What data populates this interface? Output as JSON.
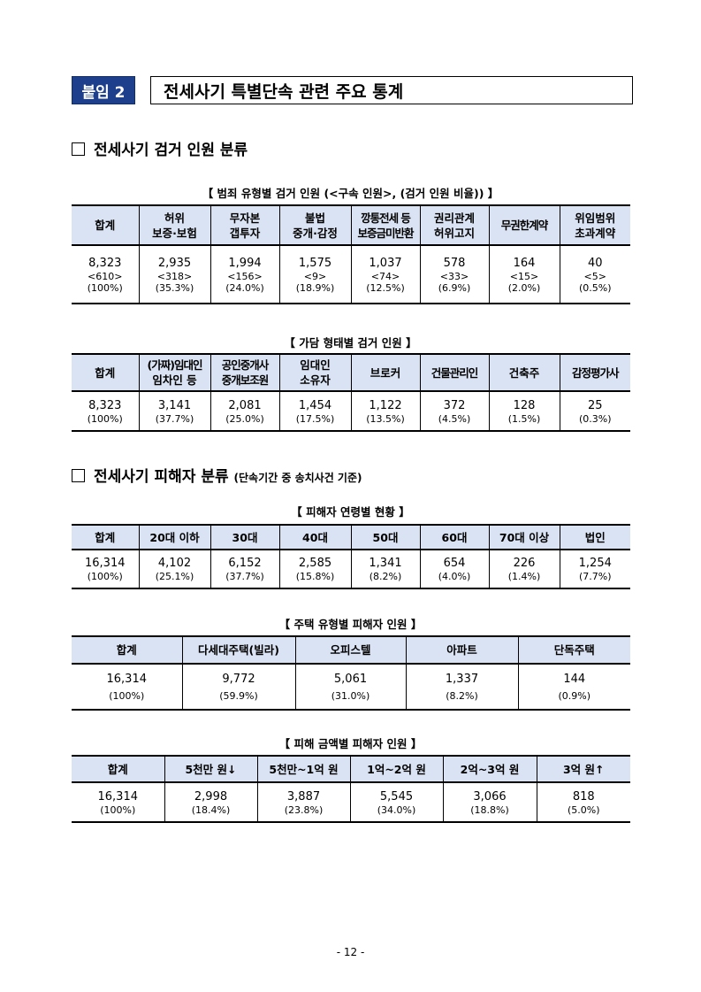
{
  "header": {
    "tag": "붙임 2",
    "title": "전세사기 특별단속 관련 주요 통계"
  },
  "section1": {
    "title": "전세사기 검거 인원 분류"
  },
  "table1": {
    "caption": "【 범죄 유형별 검거 인원 (<구속 인원>, (검거 인원 비율)) 】",
    "headers": [
      [
        "합계"
      ],
      [
        "허위",
        "보증·보험"
      ],
      [
        "무자본",
        "갭투자"
      ],
      [
        "불법",
        "중개·감정"
      ],
      [
        "깡통전세 등",
        "보증금미반환"
      ],
      [
        "권리관계",
        "허위고지"
      ],
      [
        "무권한계약"
      ],
      [
        "위임범위",
        "초과계약"
      ]
    ],
    "values": [
      "8,323",
      "2,935",
      "1,994",
      "1,575",
      "1,037",
      "578",
      "164",
      "40"
    ],
    "arrests": [
      "<610>",
      "<318>",
      "<156>",
      "<9>",
      "<74>",
      "<33>",
      "<15>",
      "<5>"
    ],
    "ratios": [
      "(100%)",
      "(35.3%)",
      "(24.0%)",
      "(18.9%)",
      "(12.5%)",
      "(6.9%)",
      "(2.0%)",
      "(0.5%)"
    ]
  },
  "table2": {
    "caption": "【 가담 형태별 검거 인원 】",
    "headers": [
      [
        "합계"
      ],
      [
        "(가짜)임대인",
        "임차인 등"
      ],
      [
        "공인중개사",
        "중개보조원"
      ],
      [
        "임대인",
        "소유자"
      ],
      [
        "브로커"
      ],
      [
        "건물관리인"
      ],
      [
        "건축주"
      ],
      [
        "감정평가사"
      ]
    ],
    "values": [
      "8,323",
      "3,141",
      "2,081",
      "1,454",
      "1,122",
      "372",
      "128",
      "25"
    ],
    "ratios": [
      "(100%)",
      "(37.7%)",
      "(25.0%)",
      "(17.5%)",
      "(13.5%)",
      "(4.5%)",
      "(1.5%)",
      "(0.3%)"
    ]
  },
  "section2": {
    "title": "전세사기 피해자 분류",
    "sub": "(단속기간 중 송치사건 기준)"
  },
  "table3": {
    "caption": "【 피해자 연령별 현황 】",
    "headers": [
      "합계",
      "20대 이하",
      "30대",
      "40대",
      "50대",
      "60대",
      "70대 이상",
      "법인"
    ],
    "values": [
      "16,314",
      "4,102",
      "6,152",
      "2,585",
      "1,341",
      "654",
      "226",
      "1,254"
    ],
    "ratios": [
      "(100%)",
      "(25.1%)",
      "(37.7%)",
      "(15.8%)",
      "(8.2%)",
      "(4.0%)",
      "(1.4%)",
      "(7.7%)"
    ]
  },
  "table4": {
    "caption": "【 주택 유형별 피해자 인원 】",
    "headers": [
      "합계",
      "다세대주택(빌라)",
      "오피스텔",
      "아파트",
      "단독주택"
    ],
    "values": [
      "16,314",
      "9,772",
      "5,061",
      "1,337",
      "144"
    ],
    "ratios": [
      "(100%)",
      "(59.9%)",
      "(31.0%)",
      "(8.2%)",
      "(0.9%)"
    ]
  },
  "table5": {
    "caption": "【 피해 금액별 피해자 인원 】",
    "headers": [
      "합계",
      "5천만 원↓",
      "5천만~1억 원",
      "1억~2억 원",
      "2억~3억 원",
      "3억 원↑"
    ],
    "values": [
      "16,314",
      "2,998",
      "3,887",
      "5,545",
      "3,066",
      "818"
    ],
    "ratios": [
      "(100%)",
      "(18.4%)",
      "(23.8%)",
      "(34.0%)",
      "(18.8%)",
      "(5.0%)"
    ]
  },
  "footer": {
    "page": "- 12 -"
  },
  "colors": {
    "accent": "#1e3f8c",
    "header_bg": "#dae3f3"
  }
}
